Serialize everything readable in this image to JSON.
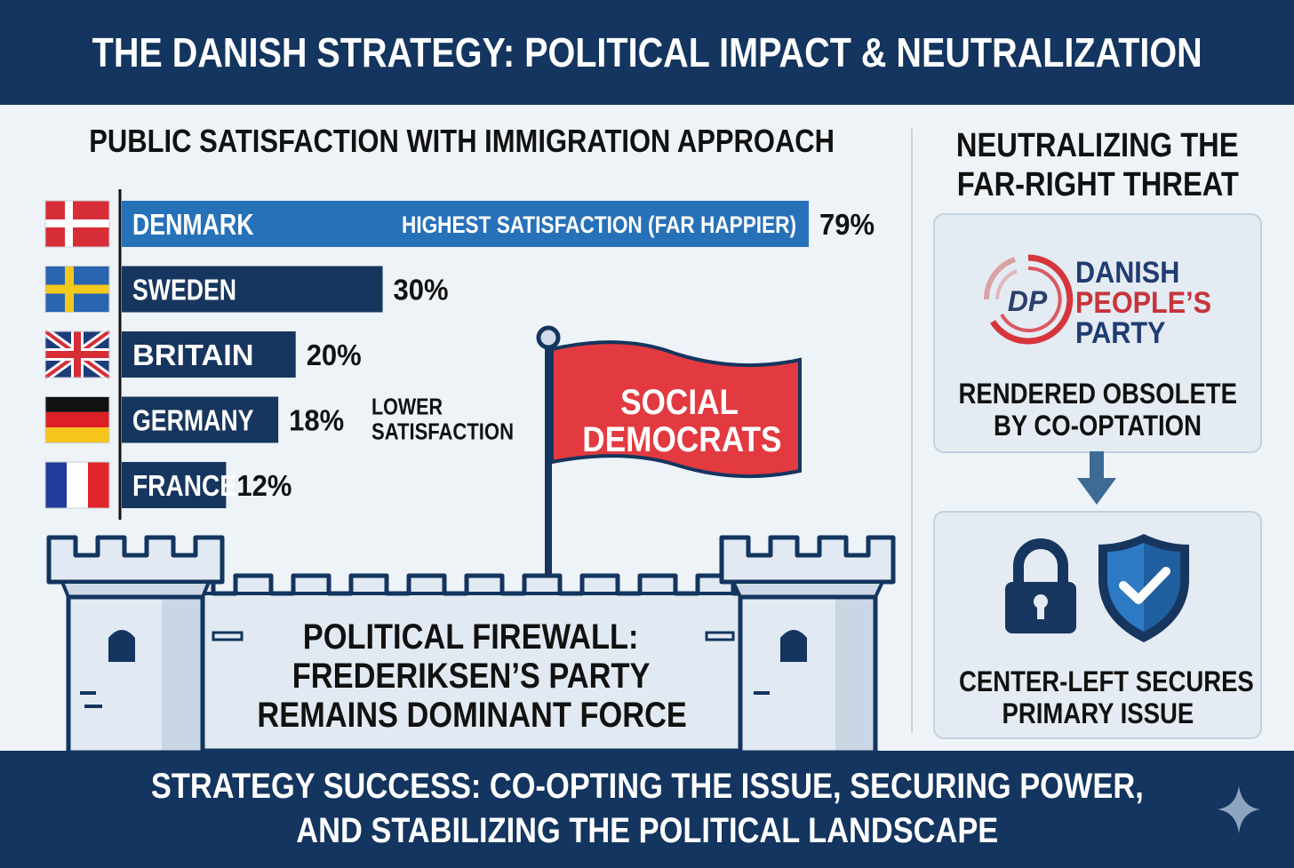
{
  "header": {
    "title": "THE DANISH STRATEGY: POLITICAL IMPACT & NEUTRALIZATION"
  },
  "chart_data": {
    "type": "bar",
    "orientation": "horizontal",
    "title": "PUBLIC SATISFACTION WITH IMMIGRATION APPROACH",
    "categories": [
      "DENMARK",
      "SWEDEN",
      "BRITAIN",
      "GERMANY",
      "FRANCE"
    ],
    "values": [
      79,
      30,
      20,
      18,
      12
    ],
    "value_labels": [
      "79%",
      "30%",
      "20%",
      "18%",
      "12%"
    ],
    "unit": "%",
    "xlim": [
      0,
      100
    ],
    "annotations": [
      {
        "category": "DENMARK",
        "text": "HIGHEST SATISFACTION (FAR HAPPIER)"
      },
      {
        "category": "GERMANY",
        "text_lines": [
          "LOWER",
          "SATISFACTION"
        ]
      }
    ],
    "grid": false,
    "colors": {
      "highlight": "#2771b8",
      "default": "#17365f"
    }
  },
  "flags": [
    "denmark-flag",
    "sweden-flag",
    "britain-flag",
    "germany-flag",
    "france-flag"
  ],
  "flag_banner": {
    "lines": [
      "SOCIAL",
      "DEMOCRATS"
    ],
    "color": "#e23a40"
  },
  "castle": {
    "lines": [
      "POLITICAL FIREWALL:",
      "FREDERIKSEN’S PARTY",
      "REMAINS DOMINANT FORCE"
    ]
  },
  "right_panel": {
    "title_lines": [
      "NEUTRALIZING THE",
      "FAR-RIGHT THREAT"
    ],
    "party_logo_text": "DP",
    "party_name_lines": [
      "DANISH",
      "PEOPLE’S",
      "PARTY"
    ],
    "top_card_lines": [
      "RENDERED OBSOLETE",
      "BY CO-OPTATION"
    ],
    "bottom_card_lines": [
      "CENTER-LEFT SECURES",
      "PRIMARY ISSUE"
    ],
    "icons": [
      "down-arrow-icon",
      "lock-icon",
      "shield-check-icon"
    ]
  },
  "footer": {
    "lines": [
      "STRATEGY SUCCESS: CO-OPTING THE ISSUE, SECURING POWER,",
      "AND STABILIZING THE POLITICAL LANDSCAPE"
    ]
  },
  "colors": {
    "navy": "#13355f",
    "blue": "#2771b8",
    "red": "#e23a40",
    "background": "#eef3f8"
  }
}
